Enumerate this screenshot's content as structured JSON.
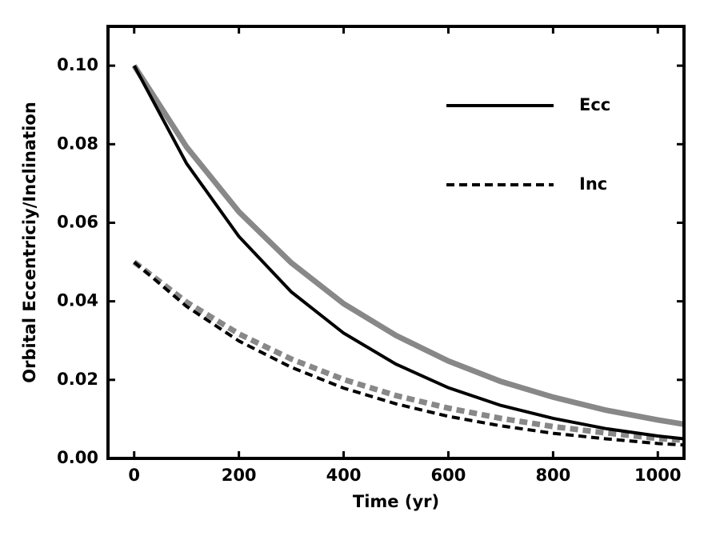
{
  "chart_data": {
    "type": "line",
    "xlabel": "Time (yr)",
    "ylabel": "Orbital Eccentriciy/Inclination",
    "x": [
      0,
      100,
      200,
      300,
      400,
      500,
      600,
      700,
      800,
      900,
      1000,
      1050
    ],
    "series": [
      {
        "name": "Ecc",
        "color": "#000000",
        "linestyle": "solid",
        "linewidth": 4,
        "values": [
          0.1,
          0.0751,
          0.0565,
          0.0424,
          0.0319,
          0.024,
          0.018,
          0.0135,
          0.0102,
          0.0076,
          0.0057,
          0.005
        ]
      },
      {
        "color": "#888888",
        "linestyle": "solid",
        "linewidth": 7,
        "values": [
          0.1,
          0.0793,
          0.0628,
          0.0498,
          0.0394,
          0.0313,
          0.0248,
          0.0196,
          0.0156,
          0.0123,
          0.0098,
          0.0087
        ]
      },
      {
        "name": "Inc",
        "color": "#000000",
        "linestyle": "dashed",
        "linewidth": 4,
        "values": [
          0.05,
          0.0387,
          0.0299,
          0.0232,
          0.0179,
          0.0139,
          0.0107,
          0.0083,
          0.0064,
          0.005,
          0.0038,
          0.0034
        ]
      },
      {
        "color": "#888888",
        "linestyle": "dashed",
        "linewidth": 7,
        "values": [
          0.05,
          0.0398,
          0.0317,
          0.0253,
          0.0201,
          0.016,
          0.0128,
          0.0102,
          0.0081,
          0.0065,
          0.0051,
          0.0046
        ]
      }
    ],
    "xlim": [
      -50,
      1050
    ],
    "xticks": [
      0,
      200,
      400,
      600,
      800,
      1000
    ],
    "ylim": [
      0,
      0.11
    ],
    "yticks": [
      {
        "value": 0,
        "label": "0.00"
      },
      {
        "value": 0.02,
        "label": "0.02"
      },
      {
        "value": 0.04,
        "label": "0.04"
      },
      {
        "value": 0.06,
        "label": "0.06"
      },
      {
        "value": 0.08,
        "label": "0.08"
      },
      {
        "value": 0.1,
        "label": "0.10"
      }
    ],
    "legend": "upper right"
  }
}
